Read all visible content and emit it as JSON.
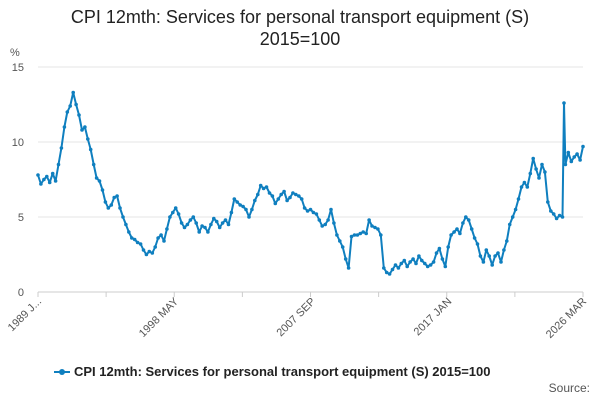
{
  "title_line1": "CPI 12mth: Services for personal transport equipment (S)",
  "title_line2": "2015=100",
  "source_label": "Source:",
  "colors": {
    "series": "#0f7fbf",
    "grid": "#e6e6e6",
    "axis": "#cccccc"
  },
  "chart_data": {
    "type": "line",
    "title": "CPI 12mth: Services for personal transport equipment (S) 2015=100",
    "ylabel": "%",
    "xlabel": "",
    "ylim": [
      0,
      15
    ],
    "yticks": [
      0,
      5,
      10,
      15
    ],
    "x_range": [
      1989.0,
      2026.2
    ],
    "xticks": [
      {
        "x": 1989.0,
        "label": "1989 J..."
      },
      {
        "x": 1998.35,
        "label": "1998 MAY"
      },
      {
        "x": 2007.7,
        "label": "2007 SEP"
      },
      {
        "x": 2017.0,
        "label": "2017 JAN"
      },
      {
        "x": 2026.2,
        "label": "2026 MAR"
      }
    ],
    "legend_position": "bottom",
    "series": [
      {
        "name": "CPI 12mth: Services for personal transport equipment (S) 2015=100",
        "points": [
          [
            1989.0,
            7.8
          ],
          [
            1989.2,
            7.2
          ],
          [
            1989.4,
            7.5
          ],
          [
            1989.6,
            7.7
          ],
          [
            1989.8,
            7.3
          ],
          [
            1990.0,
            7.9
          ],
          [
            1990.2,
            7.4
          ],
          [
            1990.4,
            8.5
          ],
          [
            1990.6,
            9.6
          ],
          [
            1990.8,
            11.0
          ],
          [
            1991.0,
            12.0
          ],
          [
            1991.2,
            12.4
          ],
          [
            1991.4,
            13.3
          ],
          [
            1991.6,
            12.5
          ],
          [
            1991.8,
            11.8
          ],
          [
            1992.0,
            10.8
          ],
          [
            1992.2,
            11.0
          ],
          [
            1992.4,
            10.2
          ],
          [
            1992.6,
            9.5
          ],
          [
            1992.8,
            8.5
          ],
          [
            1993.0,
            7.6
          ],
          [
            1993.2,
            7.4
          ],
          [
            1993.4,
            6.8
          ],
          [
            1993.6,
            6.0
          ],
          [
            1993.8,
            5.6
          ],
          [
            1994.0,
            5.8
          ],
          [
            1994.2,
            6.3
          ],
          [
            1994.4,
            6.4
          ],
          [
            1994.6,
            5.6
          ],
          [
            1994.8,
            5.0
          ],
          [
            1995.0,
            4.5
          ],
          [
            1995.2,
            4.0
          ],
          [
            1995.4,
            3.6
          ],
          [
            1995.6,
            3.5
          ],
          [
            1995.8,
            3.3
          ],
          [
            1996.0,
            3.2
          ],
          [
            1996.2,
            2.8
          ],
          [
            1996.4,
            2.5
          ],
          [
            1996.6,
            2.7
          ],
          [
            1996.8,
            2.6
          ],
          [
            1997.0,
            3.0
          ],
          [
            1997.2,
            3.6
          ],
          [
            1997.4,
            3.8
          ],
          [
            1997.6,
            3.4
          ],
          [
            1997.8,
            4.2
          ],
          [
            1998.0,
            5.0
          ],
          [
            1998.2,
            5.3
          ],
          [
            1998.4,
            5.6
          ],
          [
            1998.6,
            5.2
          ],
          [
            1998.8,
            4.6
          ],
          [
            1999.0,
            4.3
          ],
          [
            1999.2,
            4.5
          ],
          [
            1999.4,
            4.8
          ],
          [
            1999.6,
            5.0
          ],
          [
            1999.8,
            4.6
          ],
          [
            2000.0,
            4.0
          ],
          [
            2000.2,
            4.4
          ],
          [
            2000.4,
            4.3
          ],
          [
            2000.6,
            4.0
          ],
          [
            2000.8,
            4.5
          ],
          [
            2001.0,
            4.9
          ],
          [
            2001.2,
            4.7
          ],
          [
            2001.4,
            4.3
          ],
          [
            2001.6,
            4.6
          ],
          [
            2001.8,
            4.8
          ],
          [
            2002.0,
            4.5
          ],
          [
            2002.2,
            5.3
          ],
          [
            2002.4,
            6.2
          ],
          [
            2002.6,
            6.0
          ],
          [
            2002.8,
            5.8
          ],
          [
            2003.0,
            5.7
          ],
          [
            2003.2,
            5.5
          ],
          [
            2003.4,
            5.0
          ],
          [
            2003.6,
            5.5
          ],
          [
            2003.8,
            6.1
          ],
          [
            2004.0,
            6.5
          ],
          [
            2004.2,
            7.1
          ],
          [
            2004.4,
            6.9
          ],
          [
            2004.6,
            7.0
          ],
          [
            2004.8,
            6.6
          ],
          [
            2005.0,
            6.4
          ],
          [
            2005.2,
            5.9
          ],
          [
            2005.4,
            6.2
          ],
          [
            2005.6,
            6.5
          ],
          [
            2005.8,
            6.7
          ],
          [
            2006.0,
            6.1
          ],
          [
            2006.2,
            6.3
          ],
          [
            2006.4,
            6.6
          ],
          [
            2006.6,
            6.5
          ],
          [
            2006.8,
            6.4
          ],
          [
            2007.0,
            6.2
          ],
          [
            2007.2,
            5.6
          ],
          [
            2007.4,
            5.4
          ],
          [
            2007.6,
            5.5
          ],
          [
            2007.8,
            5.3
          ],
          [
            2008.0,
            5.2
          ],
          [
            2008.2,
            4.8
          ],
          [
            2008.4,
            4.4
          ],
          [
            2008.6,
            4.5
          ],
          [
            2008.8,
            4.8
          ],
          [
            2009.0,
            5.5
          ],
          [
            2009.2,
            4.6
          ],
          [
            2009.4,
            3.8
          ],
          [
            2009.6,
            3.4
          ],
          [
            2009.8,
            3.0
          ],
          [
            2010.0,
            2.2
          ],
          [
            2010.2,
            1.6
          ],
          [
            2010.4,
            3.7
          ],
          [
            2010.6,
            3.8
          ],
          [
            2010.8,
            3.8
          ],
          [
            2011.0,
            3.9
          ],
          [
            2011.2,
            4.0
          ],
          [
            2011.4,
            3.9
          ],
          [
            2011.6,
            4.8
          ],
          [
            2011.8,
            4.4
          ],
          [
            2012.0,
            4.3
          ],
          [
            2012.2,
            4.2
          ],
          [
            2012.4,
            3.8
          ],
          [
            2012.6,
            1.6
          ],
          [
            2012.8,
            1.3
          ],
          [
            2013.0,
            1.2
          ],
          [
            2013.2,
            1.5
          ],
          [
            2013.4,
            1.8
          ],
          [
            2013.6,
            1.6
          ],
          [
            2013.8,
            1.9
          ],
          [
            2014.0,
            2.1
          ],
          [
            2014.2,
            1.7
          ],
          [
            2014.4,
            2.0
          ],
          [
            2014.6,
            2.2
          ],
          [
            2014.8,
            1.9
          ],
          [
            2015.0,
            2.4
          ],
          [
            2015.2,
            2.1
          ],
          [
            2015.4,
            1.9
          ],
          [
            2015.6,
            1.7
          ],
          [
            2015.8,
            1.8
          ],
          [
            2016.0,
            2.0
          ],
          [
            2016.2,
            2.6
          ],
          [
            2016.4,
            2.9
          ],
          [
            2016.6,
            2.2
          ],
          [
            2016.8,
            1.7
          ],
          [
            2017.0,
            3.0
          ],
          [
            2017.2,
            3.8
          ],
          [
            2017.4,
            4.0
          ],
          [
            2017.6,
            4.2
          ],
          [
            2017.8,
            3.9
          ],
          [
            2018.0,
            4.6
          ],
          [
            2018.2,
            5.0
          ],
          [
            2018.4,
            4.8
          ],
          [
            2018.6,
            4.2
          ],
          [
            2018.8,
            3.6
          ],
          [
            2019.0,
            3.2
          ],
          [
            2019.2,
            2.4
          ],
          [
            2019.4,
            2.0
          ],
          [
            2019.6,
            2.8
          ],
          [
            2019.8,
            2.4
          ],
          [
            2020.0,
            1.8
          ],
          [
            2020.2,
            2.4
          ],
          [
            2020.4,
            2.6
          ],
          [
            2020.6,
            2.0
          ],
          [
            2020.8,
            2.8
          ],
          [
            2021.0,
            3.4
          ],
          [
            2021.2,
            4.5
          ],
          [
            2021.4,
            5.0
          ],
          [
            2021.6,
            5.5
          ],
          [
            2021.8,
            6.2
          ],
          [
            2022.0,
            7.0
          ],
          [
            2022.2,
            7.3
          ],
          [
            2022.4,
            7.0
          ],
          [
            2022.6,
            7.9
          ],
          [
            2022.8,
            8.9
          ],
          [
            2023.0,
            8.2
          ],
          [
            2023.2,
            7.6
          ],
          [
            2023.4,
            8.5
          ],
          [
            2023.6,
            8.0
          ],
          [
            2023.8,
            6.0
          ],
          [
            2024.0,
            5.4
          ],
          [
            2024.2,
            5.2
          ],
          [
            2024.4,
            4.9
          ],
          [
            2024.6,
            5.1
          ],
          [
            2024.8,
            5.0
          ],
          [
            2024.9,
            12.6
          ],
          [
            2025.0,
            8.5
          ],
          [
            2025.2,
            9.3
          ],
          [
            2025.4,
            8.7
          ],
          [
            2025.6,
            9.0
          ],
          [
            2025.8,
            9.2
          ],
          [
            2026.0,
            8.8
          ],
          [
            2026.2,
            9.7
          ]
        ]
      }
    ]
  }
}
